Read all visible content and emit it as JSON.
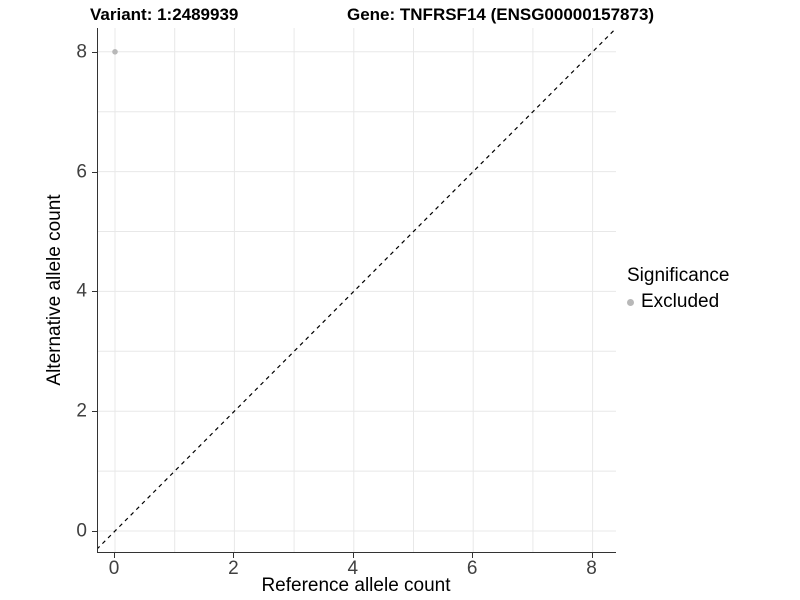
{
  "title": {
    "variant": "Variant: 1:2489939",
    "gene": "Gene: TNFRSF14 (ENSG00000157873)"
  },
  "axes": {
    "x": {
      "label": "Reference allele count",
      "ticks": [
        "0",
        "2",
        "4",
        "6",
        "8"
      ]
    },
    "y": {
      "label": "Alternative allele count",
      "ticks": [
        "0",
        "2",
        "4",
        "6",
        "8"
      ]
    }
  },
  "legend": {
    "title": "Significance",
    "items": [
      {
        "label": "Excluded",
        "color": "#b8b8b8"
      }
    ]
  },
  "chart_data": {
    "type": "scatter",
    "title": "Variant: 1:2489939 | Gene: TNFRSF14 (ENSG00000157873)",
    "xlabel": "Reference allele count",
    "ylabel": "Alternative allele count",
    "xlim": [
      -0.4,
      8.45
    ],
    "ylim": [
      -0.4,
      8.45
    ],
    "x_ticks": [
      0,
      2,
      4,
      6,
      8
    ],
    "y_ticks": [
      0,
      2,
      4,
      6,
      8
    ],
    "grid_positions": [
      0,
      1,
      2,
      3,
      4,
      5,
      6,
      7,
      8
    ],
    "grid": "on",
    "legend_position": "right",
    "series": [
      {
        "name": "Excluded",
        "color": "#b8b8b8",
        "points": [
          {
            "x": 0,
            "y": 8
          }
        ]
      }
    ],
    "reference_line": {
      "kind": "identity y = x",
      "style": "dashed",
      "color": "#000000"
    },
    "colors": {
      "grid": "#e8e8e8",
      "axis": "#333333",
      "tick_label": "#404040",
      "point": "#b8b8b8",
      "background": "#ffffff"
    }
  }
}
